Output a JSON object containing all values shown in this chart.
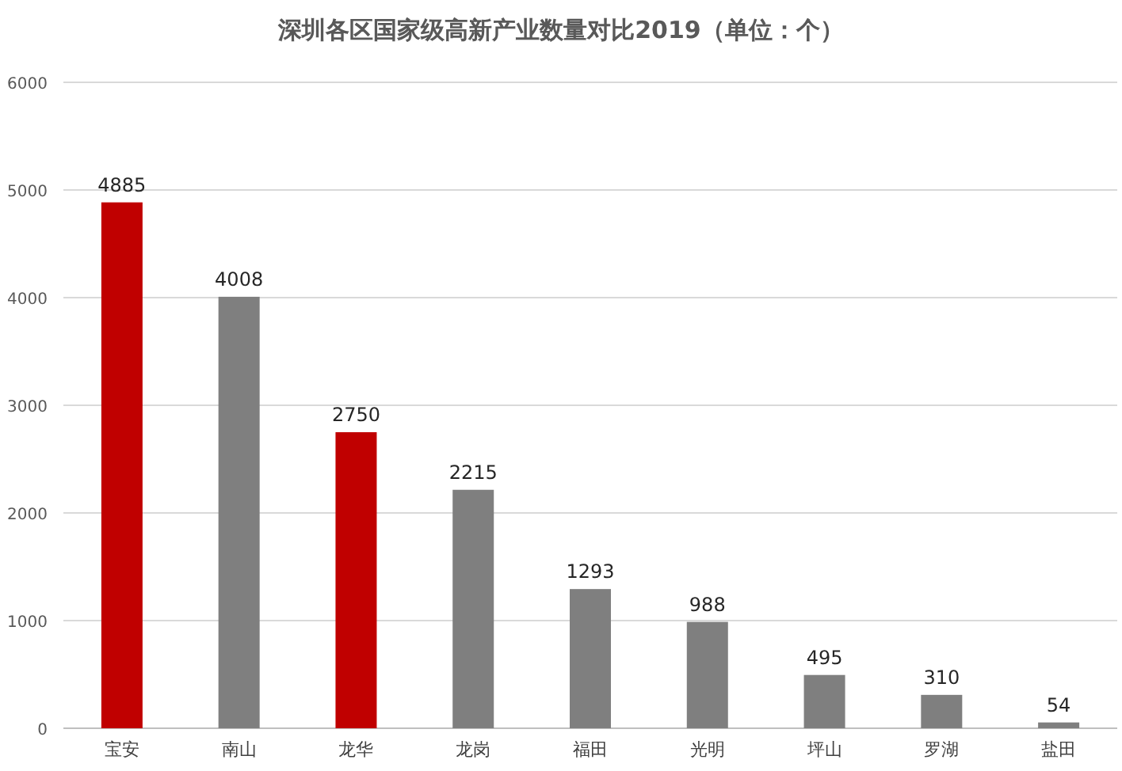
{
  "chart_data": {
    "type": "bar",
    "title": "深圳各区国家级高新产业数量对比2019（单位：个）",
    "categories": [
      "宝安",
      "南山",
      "龙华",
      "龙岗",
      "福田",
      "光明",
      "坪山",
      "罗湖",
      "盐田"
    ],
    "values": [
      4885,
      4008,
      2750,
      2215,
      1293,
      988,
      495,
      310,
      54
    ],
    "colors": [
      "#c00000",
      "#7f7f7f",
      "#c00000",
      "#7f7f7f",
      "#7f7f7f",
      "#7f7f7f",
      "#7f7f7f",
      "#7f7f7f",
      "#7f7f7f"
    ],
    "ylim": [
      0,
      6000
    ],
    "yticks": [
      0,
      1000,
      2000,
      3000,
      4000,
      5000,
      6000
    ],
    "grid": "y",
    "data_labels": true
  }
}
